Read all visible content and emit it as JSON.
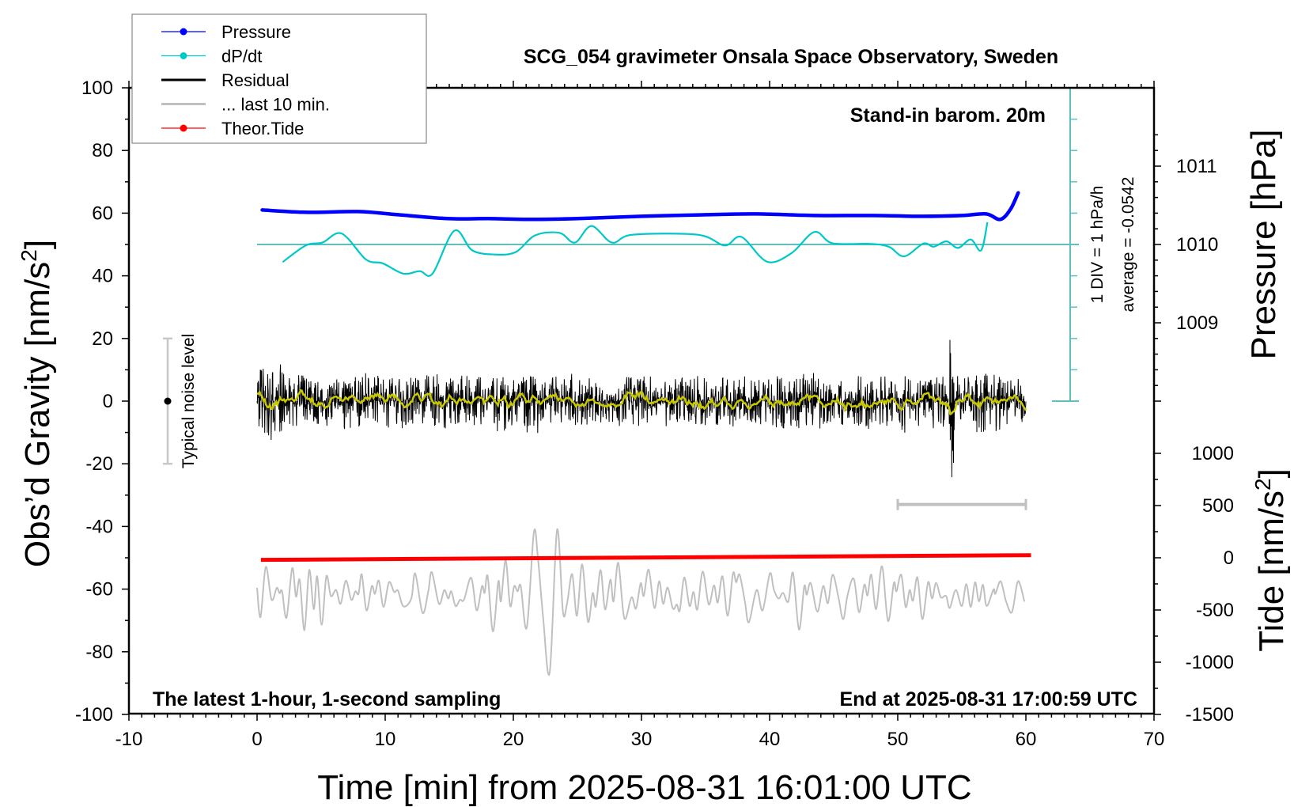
{
  "chart_data": {
    "type": "line",
    "title": "SCG_054 gravimeter Onsala Space Observatory, Sweden",
    "subtitle_top_right": "Stand-in barom. 20m",
    "note_bottom_left": "The latest 1-hour, 1-second sampling",
    "note_bottom_right": "End at 2025-08-31 17:00:59 UTC",
    "xlabel": "Time [min] from 2025-08-31 16:01:00 UTC",
    "ylabel_left": "Obs’d Gravity [nm/s",
    "ylabel_left_sup": "2",
    "ylabel_left_end": "]",
    "ylabel_pressure": "Pressure [hPa]",
    "ylabel_tide": "Tide [nm/s",
    "ylabel_tide_sup": "2",
    "ylabel_tide_end": "]",
    "xlim": [
      -10,
      70
    ],
    "ylim": [
      -100,
      100
    ],
    "x_ticks": [
      "-10",
      "0",
      "10",
      "20",
      "30",
      "40",
      "50",
      "60",
      "70"
    ],
    "y_ticks": [
      "100",
      "80",
      "60",
      "40",
      "20",
      "0",
      "-20",
      "-40",
      "-60",
      "-80",
      "-100"
    ],
    "pressure_ticks": [
      "1011",
      "1010",
      "1009"
    ],
    "tide_ticks": [
      "1000",
      "500",
      "0",
      "-500",
      "-1000",
      "-1500"
    ],
    "grid": false,
    "legend_placement": "top-left",
    "legend": [
      {
        "label": "Pressure",
        "color": "#0000ff",
        "marker": "dot"
      },
      {
        "label": "dP/dt",
        "color": "#00c8c8",
        "marker": "dot"
      },
      {
        "label": "Residual",
        "color": "#000000",
        "marker": "line"
      },
      {
        "label": "... last 10 min.",
        "color": "#c0c0c0",
        "marker": "line"
      },
      {
        "label": "Theor.Tide",
        "color": "#ff0000",
        "marker": "dot"
      }
    ],
    "colors": {
      "pressure": "#0000ff",
      "dpdt": "#00c8c8",
      "dpdt_axis": "#5fbfbf",
      "residual": "#000000",
      "residual_smoothed": "#c8c800",
      "last10": "#c0c0c0",
      "tide": "#ff0000"
    },
    "dpdt_scale_label": "1 DIV = 1 hPa/h",
    "dpdt_average_label": "average = -0.0542",
    "noise_level_label": "Typical noise level",
    "noise_level_range": [
      -20,
      20
    ],
    "last10_span_min": [
      50,
      60
    ],
    "pressure_hPa": [
      [
        0.4,
        1010.44
      ],
      [
        4,
        1010.41
      ],
      [
        7.9,
        1010.42
      ],
      [
        11,
        1010.38
      ],
      [
        14.9,
        1010.33
      ],
      [
        18,
        1010.33
      ],
      [
        21.5,
        1010.32
      ],
      [
        25,
        1010.33
      ],
      [
        30,
        1010.36
      ],
      [
        35,
        1010.38
      ],
      [
        39,
        1010.39
      ],
      [
        43.7,
        1010.37
      ],
      [
        48,
        1010.37
      ],
      [
        52,
        1010.36
      ],
      [
        55,
        1010.37
      ],
      [
        56.9,
        1010.39
      ],
      [
        58,
        1010.32
      ],
      [
        58.8,
        1010.45
      ],
      [
        59.4,
        1010.66
      ]
    ],
    "dpdt_hPa_per_h": [
      [
        2.0,
        -0.56
      ],
      [
        3.8,
        -0.03
      ],
      [
        5.1,
        0.06
      ],
      [
        6.6,
        0.35
      ],
      [
        8.5,
        -0.48
      ],
      [
        9.8,
        -0.6
      ],
      [
        11.4,
        -0.93
      ],
      [
        12.7,
        -0.85
      ],
      [
        13.7,
        -0.93
      ],
      [
        15.4,
        0.44
      ],
      [
        16.8,
        -0.19
      ],
      [
        18.6,
        -0.32
      ],
      [
        20.2,
        -0.24
      ],
      [
        21.7,
        0.29
      ],
      [
        23.6,
        0.37
      ],
      [
        24.8,
        0.06
      ],
      [
        26.1,
        0.59
      ],
      [
        27.7,
        0.06
      ],
      [
        29.3,
        0.31
      ],
      [
        34.4,
        0.31
      ],
      [
        36.5,
        -0.03
      ],
      [
        37.8,
        0.24
      ],
      [
        39.8,
        -0.55
      ],
      [
        41.7,
        -0.28
      ],
      [
        43.5,
        0.4
      ],
      [
        44.9,
        0.04
      ],
      [
        47.8,
        0.02
      ],
      [
        49.3,
        -0.07
      ],
      [
        50.5,
        -0.38
      ],
      [
        52,
        0.03
      ],
      [
        52.8,
        -0.07
      ],
      [
        53.8,
        0.1
      ],
      [
        54.7,
        -0.11
      ],
      [
        55.7,
        0.16
      ],
      [
        56.5,
        -0.19
      ],
      [
        57,
        0.71
      ]
    ],
    "residual_envelope_2min": [
      [
        0,
        -12.5,
        11.9
      ],
      [
        2,
        -8,
        9
      ],
      [
        4,
        -8,
        7
      ],
      [
        6,
        -9,
        8
      ],
      [
        8,
        -8,
        9
      ],
      [
        10,
        -9,
        8
      ],
      [
        12,
        -8,
        9
      ],
      [
        14,
        -9,
        9
      ],
      [
        16,
        -8,
        8
      ],
      [
        18,
        -10,
        8
      ],
      [
        20,
        -11,
        8
      ],
      [
        22,
        -8,
        8
      ],
      [
        24,
        -8,
        9
      ],
      [
        26,
        -7,
        7
      ],
      [
        28,
        -8,
        9
      ],
      [
        30,
        -8,
        8
      ],
      [
        32,
        -7,
        8
      ],
      [
        34,
        -8,
        9
      ],
      [
        36,
        -9,
        8
      ],
      [
        38,
        -8,
        8
      ],
      [
        40,
        -9,
        9
      ],
      [
        42,
        -9,
        9
      ],
      [
        44,
        -8,
        8
      ],
      [
        46,
        -9,
        8
      ],
      [
        48,
        -8,
        9
      ],
      [
        50,
        -11,
        8
      ],
      [
        52,
        -9,
        8
      ],
      [
        54,
        -25,
        21
      ],
      [
        56,
        -10,
        9
      ],
      [
        58,
        -8,
        8
      ]
    ],
    "tide_nm_s2": [
      [
        0.3,
        -20
      ],
      [
        60.4,
        25
      ]
    ],
    "last10_min_plotted": [
      [
        0.0,
        -59.6
      ],
      [
        0.27,
        -68.9
      ],
      [
        0.68,
        -52.9
      ],
      [
        1.13,
        -63.4
      ],
      [
        1.54,
        -59.6
      ],
      [
        1.75,
        -61.3
      ],
      [
        1.95,
        -60.7
      ],
      [
        2.3,
        -69.1
      ],
      [
        2.74,
        -53.3
      ],
      [
        3.04,
        -62.4
      ],
      [
        3.33,
        -57.1
      ],
      [
        3.7,
        -73.1
      ],
      [
        4.07,
        -53.9
      ],
      [
        4.42,
        -66.4
      ],
      [
        4.69,
        -55.9
      ],
      [
        5.04,
        -71.4
      ],
      [
        5.41,
        -55.9
      ],
      [
        5.76,
        -62.2
      ],
      [
        6.17,
        -60.3
      ],
      [
        6.52,
        -64.7
      ],
      [
        6.93,
        -57.3
      ],
      [
        7.35,
        -63.4
      ],
      [
        7.67,
        -60.7
      ],
      [
        7.92,
        -61.5
      ],
      [
        8.17,
        -55.3
      ],
      [
        8.54,
        -66.8
      ],
      [
        8.95,
        -59.1
      ],
      [
        9.2,
        -61.5
      ],
      [
        9.5,
        -57.3
      ],
      [
        9.87,
        -65.7
      ],
      [
        10.29,
        -57.8
      ],
      [
        10.7,
        -60.9
      ],
      [
        11.0,
        -60.5
      ],
      [
        11.42,
        -65.5
      ],
      [
        12.04,
        -63.0
      ],
      [
        12.34,
        -55.0
      ],
      [
        12.92,
        -67.6
      ],
      [
        13.37,
        -60.5
      ],
      [
        13.64,
        -54.6
      ],
      [
        14.2,
        -64.7
      ],
      [
        14.61,
        -60.3
      ],
      [
        14.92,
        -63.0
      ],
      [
        15.16,
        -60.7
      ],
      [
        15.49,
        -65.4
      ],
      [
        15.84,
        -63.4
      ],
      [
        16.15,
        -63.4
      ],
      [
        16.71,
        -56.4
      ],
      [
        17.14,
        -66.8
      ],
      [
        17.55,
        -59.1
      ],
      [
        17.76,
        -61.2
      ],
      [
        18.0,
        -55.9
      ],
      [
        18.41,
        -73.5
      ],
      [
        18.83,
        -57.5
      ],
      [
        19.03,
        -63.9
      ],
      [
        19.4,
        -50.8
      ],
      [
        19.75,
        -65.4
      ],
      [
        20.06,
        -59.1
      ],
      [
        20.33,
        -60.7
      ],
      [
        20.58,
        -59.1
      ],
      [
        21.05,
        -72.3
      ],
      [
        21.6,
        -42.0
      ],
      [
        21.91,
        -49.5
      ],
      [
        22.32,
        -68.9
      ],
      [
        22.84,
        -86.6
      ],
      [
        23.41,
        -41.1
      ],
      [
        23.87,
        -67.2
      ],
      [
        24.18,
        -64.9
      ],
      [
        24.59,
        -55.2
      ],
      [
        24.96,
        -68.5
      ],
      [
        25.37,
        -52.1
      ],
      [
        25.82,
        -70.4
      ],
      [
        26.19,
        -61.3
      ],
      [
        26.44,
        -65.5
      ],
      [
        26.81,
        -53.9
      ],
      [
        27.16,
        -66.5
      ],
      [
        27.57,
        -57.0
      ],
      [
        27.82,
        -63.9
      ],
      [
        28.19,
        -51.6
      ],
      [
        28.66,
        -69.3
      ],
      [
        29.22,
        -62.6
      ],
      [
        29.57,
        -66.2
      ],
      [
        29.94,
        -58.1
      ],
      [
        30.18,
        -62.2
      ],
      [
        30.56,
        -53.8
      ],
      [
        31.01,
        -66.0
      ],
      [
        31.38,
        -57.5
      ],
      [
        31.69,
        -64.7
      ],
      [
        32.04,
        -59.5
      ],
      [
        32.45,
        -66.2
      ],
      [
        32.76,
        -64.9
      ],
      [
        32.99,
        -66.8
      ],
      [
        33.34,
        -56.3
      ],
      [
        33.75,
        -65.4
      ],
      [
        34.06,
        -60.9
      ],
      [
        34.36,
        -66.5
      ],
      [
        34.78,
        -54.4
      ],
      [
        35.25,
        -64.9
      ],
      [
        35.66,
        -58.8
      ],
      [
        35.95,
        -64.3
      ],
      [
        36.32,
        -55.9
      ],
      [
        36.73,
        -68.5
      ],
      [
        37.14,
        -55.0
      ],
      [
        37.39,
        -57.8
      ],
      [
        37.66,
        -55.4
      ],
      [
        38.07,
        -63.9
      ],
      [
        38.38,
        -70.6
      ],
      [
        38.99,
        -60.3
      ],
      [
        39.45,
        -66.8
      ],
      [
        40.02,
        -55.0
      ],
      [
        40.33,
        -60.1
      ],
      [
        40.7,
        -63.0
      ],
      [
        41.05,
        -61.2
      ],
      [
        41.46,
        -64.0
      ],
      [
        41.83,
        -54.8
      ],
      [
        42.29,
        -72.9
      ],
      [
        42.7,
        -59.2
      ],
      [
        42.9,
        -61.8
      ],
      [
        43.21,
        -58.1
      ],
      [
        43.73,
        -67.2
      ],
      [
        44.18,
        -59.0
      ],
      [
        44.55,
        -64.5
      ],
      [
        44.92,
        -55.4
      ],
      [
        45.37,
        -62.6
      ],
      [
        45.74,
        -69.6
      ],
      [
        46.09,
        -61.8
      ],
      [
        46.57,
        -56.7
      ],
      [
        46.98,
        -67.4
      ],
      [
        47.39,
        -58.6
      ],
      [
        47.64,
        -62.0
      ],
      [
        47.94,
        -55.4
      ],
      [
        48.31,
        -66.4
      ],
      [
        48.77,
        -52.7
      ],
      [
        49.24,
        -70.2
      ],
      [
        49.69,
        -58.1
      ],
      [
        49.9,
        -60.7
      ],
      [
        50.27,
        -55.4
      ],
      [
        50.62,
        -65.7
      ],
      [
        50.93,
        -60.3
      ],
      [
        51.19,
        -63.7
      ],
      [
        51.54,
        -56.3
      ],
      [
        51.92,
        -69.6
      ],
      [
        52.37,
        -57.8
      ],
      [
        52.68,
        -63.0
      ],
      [
        52.99,
        -58.0
      ],
      [
        53.36,
        -62.6
      ],
      [
        53.77,
        -62.2
      ],
      [
        54.06,
        -66.0
      ],
      [
        54.53,
        -60.3
      ],
      [
        55.0,
        -65.4
      ],
      [
        55.35,
        -58.4
      ],
      [
        55.7,
        -65.7
      ],
      [
        56.03,
        -57.8
      ],
      [
        56.34,
        -63.9
      ],
      [
        56.65,
        -58.6
      ],
      [
        56.94,
        -65.4
      ],
      [
        57.47,
        -60.1
      ],
      [
        57.62,
        -61.5
      ],
      [
        58.03,
        -57.5
      ],
      [
        58.44,
        -63.7
      ],
      [
        58.91,
        -67.4
      ],
      [
        59.32,
        -58.1
      ],
      [
        59.57,
        -58.8
      ],
      [
        59.88,
        -64.0
      ]
    ]
  }
}
